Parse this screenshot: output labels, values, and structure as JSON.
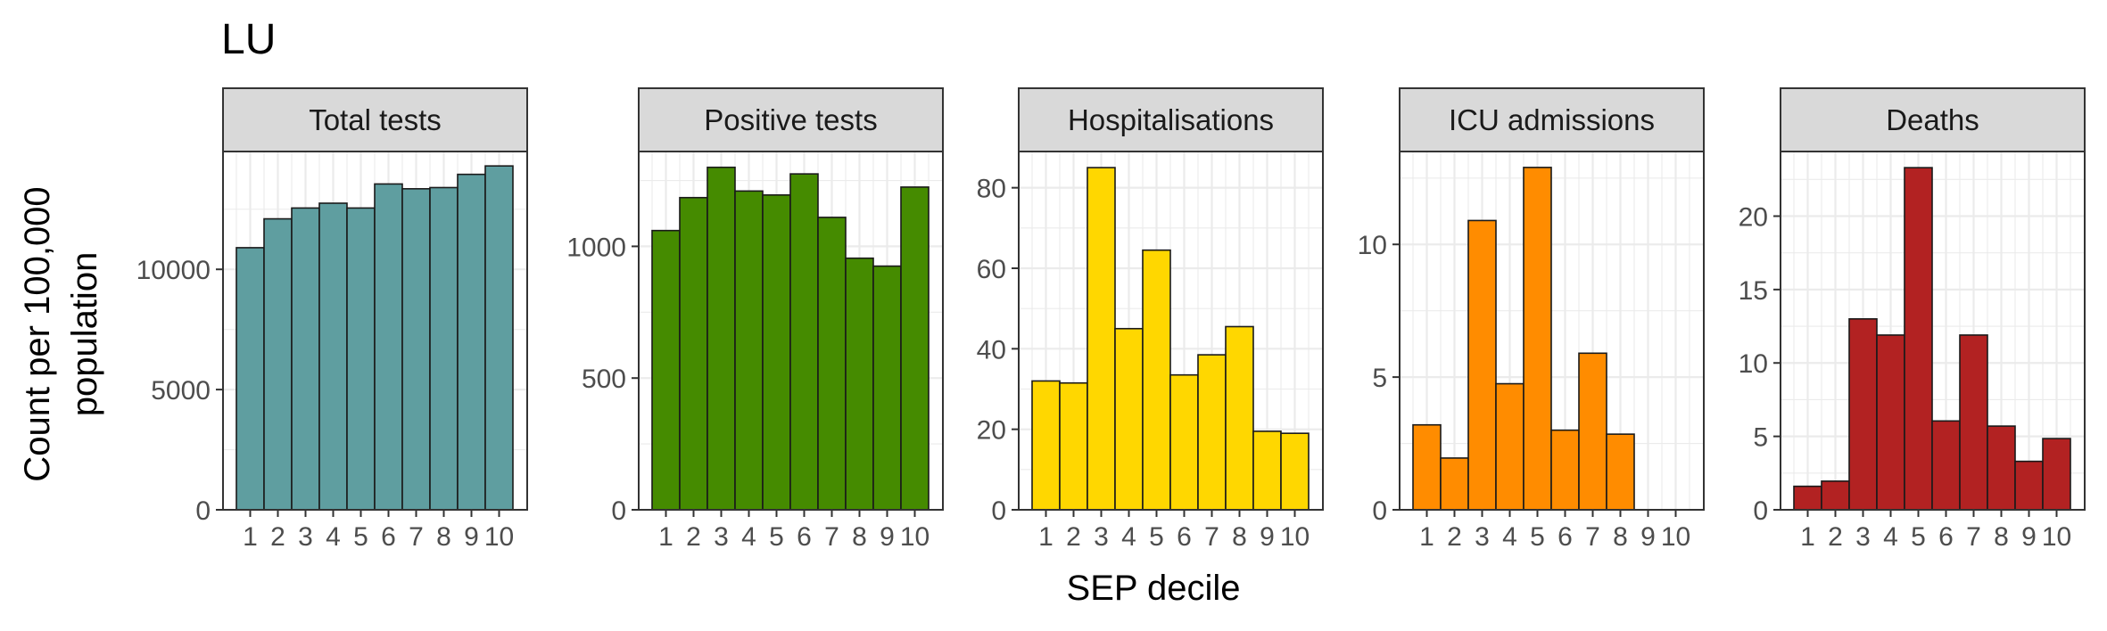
{
  "chart_data": {
    "type": "bar",
    "title": "LU",
    "xlabel": "SEP decile",
    "ylabel_lines": [
      "Count per 100,000",
      "population"
    ],
    "categories": [
      "1",
      "2",
      "3",
      "4",
      "5",
      "6",
      "7",
      "8",
      "9",
      "10"
    ],
    "grid": true,
    "panels": [
      {
        "title": "Total tests",
        "color": "#5f9ea0",
        "ylim": [
          0,
          14900
        ],
        "yticks": [
          0,
          5000,
          10000
        ],
        "ytick_labels": [
          "0",
          "5000",
          "10000"
        ],
        "values": [
          10900,
          12100,
          12550,
          12750,
          12550,
          13550,
          13350,
          13400,
          13950,
          14300
        ]
      },
      {
        "title": "Positive tests",
        "color": "#458b00",
        "ylim": [
          0,
          1360
        ],
        "yticks": [
          0,
          500,
          1000
        ],
        "ytick_labels": [
          "0",
          "500",
          "1000"
        ],
        "values": [
          1060,
          1185,
          1300,
          1210,
          1195,
          1275,
          1110,
          955,
          925,
          1225
        ]
      },
      {
        "title": "Hospitalisations",
        "color": "#ffd700",
        "ylim": [
          0,
          89
        ],
        "yticks": [
          0,
          20,
          40,
          60,
          80
        ],
        "ytick_labels": [
          "0",
          "20",
          "40",
          "60",
          "80"
        ],
        "values": [
          32,
          31.5,
          85,
          45,
          64.5,
          33.5,
          38.5,
          45.5,
          19.5,
          19
        ]
      },
      {
        "title": "ICU admissions",
        "color": "#ff8c00",
        "ylim": [
          0,
          13.5
        ],
        "yticks": [
          0,
          5,
          10
        ],
        "ytick_labels": [
          "0",
          "5",
          "10"
        ],
        "values": [
          3.2,
          1.95,
          10.9,
          4.75,
          12.9,
          3.0,
          5.9,
          2.85,
          0,
          0
        ]
      },
      {
        "title": "Deaths",
        "color": "#b22222",
        "ylim": [
          0,
          24.4
        ],
        "yticks": [
          0,
          5,
          10,
          15,
          20
        ],
        "ytick_labels": [
          "0",
          "5",
          "10",
          "15",
          "20"
        ],
        "values": [
          1.6,
          1.95,
          13.0,
          11.9,
          23.3,
          6.05,
          11.9,
          5.7,
          3.3,
          4.85
        ]
      }
    ]
  }
}
